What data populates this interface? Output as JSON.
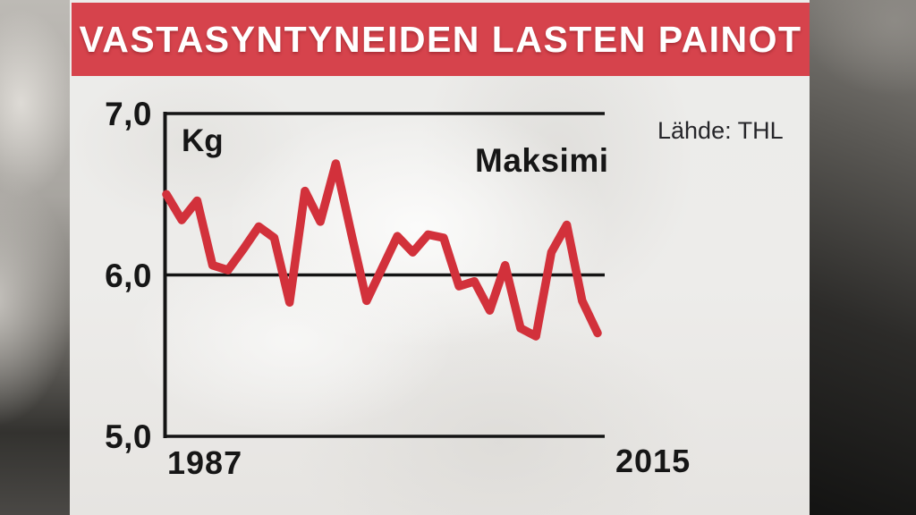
{
  "header": {
    "title": "VASTASYNTYNEIDEN LASTEN PAINOT",
    "bar_color": "#d6434c"
  },
  "source_label": "Lähde: THL",
  "chart_data": {
    "type": "line",
    "title": "VASTASYNTYNEIDEN LASTEN PAINOT",
    "unit_label": "Kg",
    "ylabel": "Kg",
    "xlabel": "",
    "ylim": [
      5.0,
      7.0
    ],
    "ytick_values": [
      7.0,
      6.0,
      5.0
    ],
    "ytick_labels": [
      "7,0",
      "6,0",
      "5,0"
    ],
    "xtick_values": [
      1987,
      2015
    ],
    "xtick_labels": [
      "1987",
      "2015"
    ],
    "grid": "horizontal",
    "legend_position": "top-right-inside",
    "axis_color": "#141414",
    "series": [
      {
        "name": "Maksimi",
        "color": "#d2313b",
        "x": [
          1987,
          1988,
          1989,
          1990,
          1991,
          1992,
          1993,
          1994,
          1995,
          1996,
          1997,
          1998,
          1999,
          2000,
          2001,
          2002,
          2003,
          2004,
          2005,
          2006,
          2007,
          2008,
          2009,
          2010,
          2011,
          2012,
          2013,
          2014,
          2015
        ],
        "values": [
          6.5,
          6.34,
          6.46,
          6.06,
          6.03,
          6.16,
          6.3,
          6.23,
          5.83,
          6.52,
          6.33,
          6.69,
          6.26,
          5.84,
          6.04,
          6.24,
          6.14,
          6.25,
          6.23,
          5.93,
          5.96,
          5.78,
          6.06,
          5.67,
          5.62,
          6.14,
          6.31,
          5.84,
          5.64
        ]
      }
    ]
  }
}
